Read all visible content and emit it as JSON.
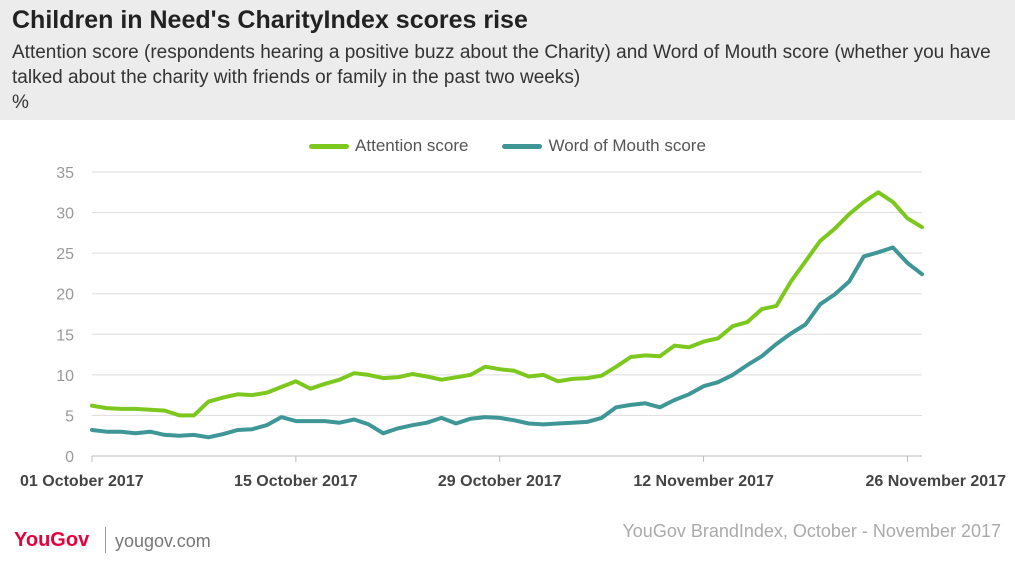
{
  "header": {
    "title": "Children in Need's CharityIndex scores rise",
    "subtitle": "Attention score (respondents hearing a positive buzz about the Charity) and Word of Mouth score (whether you have talked about the charity with friends or family in the past two weeks)",
    "unit": "%"
  },
  "footer": {
    "logo": "YouGov",
    "url": "yougov.com",
    "source": "YouGov BrandIndex, October - November 2017"
  },
  "colors": {
    "attention": "#7dc81e",
    "word_of_mouth": "#3f9696",
    "header_bg": "#ececec",
    "grid": "#dddddd"
  },
  "chart_data": {
    "type": "line",
    "ylim": [
      0,
      35
    ],
    "yticks": [
      0,
      5,
      10,
      15,
      20,
      25,
      30,
      35
    ],
    "grid": true,
    "legend_position": "top-center",
    "x_tick_labels": [
      {
        "index": 0,
        "label": "01 October 2017"
      },
      {
        "index": 14,
        "label": "15 October 2017"
      },
      {
        "index": 28,
        "label": "29 October 2017"
      },
      {
        "index": 42,
        "label": "12 November 2017"
      },
      {
        "index": 56,
        "label": "26 November 2017"
      }
    ],
    "series": [
      {
        "name": "Attention score",
        "values": [
          6.2,
          5.9,
          5.8,
          5.8,
          5.7,
          5.6,
          5.0,
          5.0,
          6.7,
          7.2,
          7.6,
          7.5,
          7.8,
          8.5,
          9.2,
          8.3,
          8.9,
          9.4,
          10.2,
          10.0,
          9.6,
          9.7,
          10.1,
          9.8,
          9.4,
          9.7,
          10.0,
          11.0,
          10.7,
          10.5,
          9.8,
          10.0,
          9.2,
          9.5,
          9.6,
          9.9,
          11.0,
          12.2,
          12.4,
          12.3,
          13.6,
          13.4,
          14.1,
          14.5,
          16.0,
          16.5,
          18.1,
          18.5,
          21.5,
          24.0,
          26.5,
          28.0,
          29.8,
          31.3,
          32.5,
          31.3,
          29.3,
          28.2
        ]
      },
      {
        "name": "Word of Mouth score",
        "values": [
          3.2,
          3.0,
          3.0,
          2.8,
          3.0,
          2.6,
          2.5,
          2.6,
          2.3,
          2.7,
          3.2,
          3.3,
          3.8,
          4.8,
          4.3,
          4.3,
          4.3,
          4.1,
          4.5,
          3.9,
          2.8,
          3.4,
          3.8,
          4.1,
          4.7,
          4.0,
          4.6,
          4.8,
          4.7,
          4.4,
          4.0,
          3.9,
          4.0,
          4.1,
          4.2,
          4.7,
          6.0,
          6.3,
          6.5,
          6.0,
          6.9,
          7.6,
          8.6,
          9.1,
          10.0,
          11.2,
          12.3,
          13.8,
          15.1,
          16.2,
          18.7,
          19.9,
          21.5,
          24.6,
          25.1,
          25.7,
          23.8,
          22.4
        ]
      }
    ]
  }
}
